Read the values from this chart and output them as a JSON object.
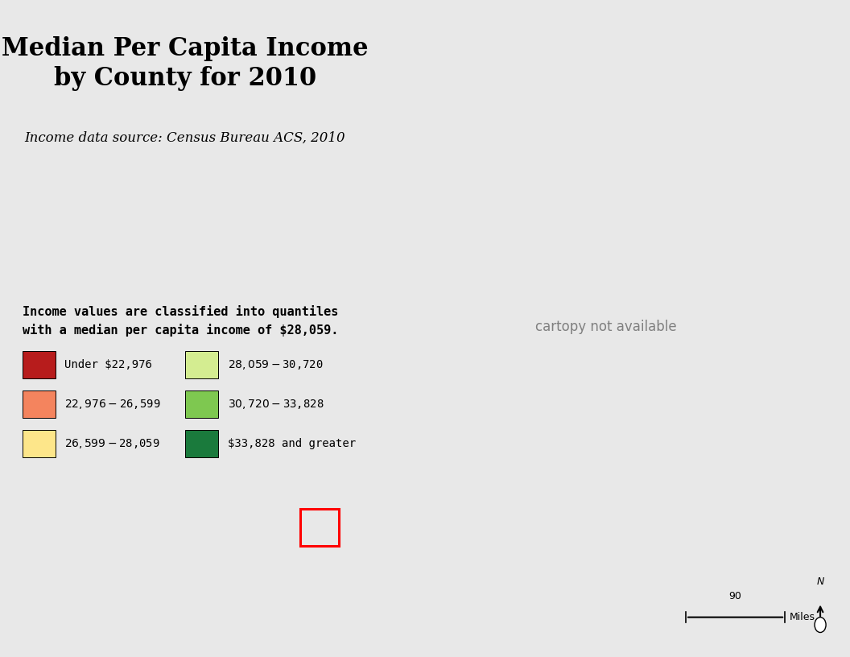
{
  "title": "Median Per Capita Income\nby County for 2010",
  "subtitle": "Income data source: Census Bureau ACS, 2010",
  "note": "Income values are classified into quantiles\nwith a median per capita income of $28,059.",
  "legend_items": [
    {
      "label": "Under $22,976",
      "color": "#b71c1c"
    },
    {
      "label": "$22,976 - $26,599",
      "color": "#f4845e"
    },
    {
      "label": "$26,599 - $28,059",
      "color": "#fde68a"
    },
    {
      "label": "$28,059 - $30,720",
      "color": "#d4ed91"
    },
    {
      "label": "$30,720 - $33,828",
      "color": "#7ec850"
    },
    {
      "label": "$33,828 and greater",
      "color": "#1a7a3c"
    }
  ],
  "background_color": "#e8e8e8",
  "map_background": "#f5f5f5",
  "title_fontsize": 22,
  "subtitle_fontsize": 12,
  "note_fontsize": 11,
  "legend_fontsize": 10,
  "county_colors": {
    "23001": "#f4845e",
    "23003": "#b71c1c",
    "23005": "#f4845e",
    "23007": "#b71c1c",
    "23009": "#f4845e",
    "23011": "#b71c1c",
    "23013": "#f4845e",
    "23015": "#fde68a",
    "23017": "#b71c1c",
    "23019": "#b71c1c",
    "23021": "#b71c1c",
    "23023": "#f4845e",
    "23025": "#b71c1c",
    "23027": "#f4845e",
    "23029": "#b71c1c",
    "23031": "#f4845e",
    "33001": "#fde68a",
    "33003": "#b71c1c",
    "33005": "#d4ed91",
    "33007": "#b71c1c",
    "33009": "#d4ed91",
    "33011": "#7ec850",
    "33013": "#7ec850",
    "33015": "#1a7a3c",
    "33017": "#d4ed91",
    "33019": "#fde68a",
    "50001": "#fde68a",
    "50003": "#f4845e",
    "50005": "#fde68a",
    "50007": "#d4ed91",
    "50009": "#b71c1c",
    "50011": "#f4845e",
    "50013": "#fde68a",
    "50015": "#fde68a",
    "50017": "#fde68a",
    "50019": "#b71c1c",
    "50021": "#f4845e",
    "50023": "#fde68a",
    "50025": "#f4845e",
    "50027": "#d4ed91",
    "25001": "#d4ed91",
    "25003": "#f4845e",
    "25005": "#f4845e",
    "25007": "#1a7a3c",
    "25009": "#7ec850",
    "25011": "#d4ed91",
    "25013": "#f4845e",
    "25015": "#d4ed91",
    "25017": "#1a7a3c",
    "25019": "#1a7a3c",
    "25021": "#1a7a3c",
    "25023": "#7ec850",
    "25025": "#d4ed91",
    "25027": "#7ec850",
    "44001": "#7ec850",
    "44003": "#7ec850",
    "44005": "#1a7a3c",
    "44007": "#f4845e",
    "44009": "#7ec850",
    "09001": "#1a7a3c",
    "09003": "#7ec850",
    "09005": "#d4ed91",
    "09007": "#7ec850",
    "09009": "#1a7a3c",
    "09011": "#d4ed91",
    "09013": "#7ec850",
    "09015": "#f4845e"
  }
}
